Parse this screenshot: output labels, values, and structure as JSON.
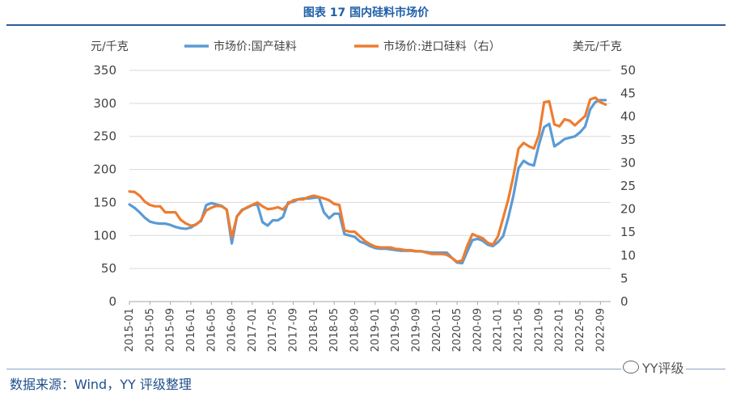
{
  "title": "图表 17 国内硅料市场价",
  "source": "数据来源：Wind，YY 评级整理",
  "watermark": "YY评级",
  "chart_data": {
    "type": "line",
    "left_axis_unit": "元/千克",
    "right_axis_unit": "美元/千克",
    "left_ylim": [
      0,
      350
    ],
    "left_yticks": [
      0,
      50,
      100,
      150,
      200,
      250,
      300,
      350
    ],
    "right_ylim": [
      0,
      50
    ],
    "right_yticks": [
      0,
      5,
      10,
      15,
      20,
      25,
      30,
      35,
      40,
      45,
      50
    ],
    "xlim": [
      "2015-01",
      "2022-11"
    ],
    "x_tick_labels": [
      "2015-01",
      "2015-05",
      "2015-09",
      "2016-01",
      "2016-05",
      "2016-09",
      "2017-01",
      "2017-05",
      "2017-09",
      "2018-01",
      "2018-05",
      "2018-09",
      "2019-01",
      "2019-05",
      "2019-09",
      "2020-01",
      "2020-05",
      "2020-09",
      "2021-01",
      "2021-05",
      "2021-09",
      "2022-01",
      "2022-05",
      "2022-09"
    ],
    "series": [
      {
        "name": "市场价:国产硅料",
        "axis": "left",
        "color": "#5b9bd5",
        "points": [
          [
            "2015-01",
            147
          ],
          [
            "2015-02",
            142
          ],
          [
            "2015-03",
            135
          ],
          [
            "2015-04",
            127
          ],
          [
            "2015-05",
            121
          ],
          [
            "2015-06",
            119
          ],
          [
            "2015-07",
            118
          ],
          [
            "2015-08",
            118
          ],
          [
            "2015-09",
            116
          ],
          [
            "2015-10",
            113
          ],
          [
            "2015-11",
            111
          ],
          [
            "2015-12",
            110
          ],
          [
            "2016-01",
            112
          ],
          [
            "2016-02",
            117
          ],
          [
            "2016-03",
            122
          ],
          [
            "2016-04",
            146
          ],
          [
            "2016-05",
            149
          ],
          [
            "2016-06",
            147
          ],
          [
            "2016-07",
            145
          ],
          [
            "2016-08",
            139
          ],
          [
            "2016-09",
            88
          ],
          [
            "2016-10",
            129
          ],
          [
            "2016-11",
            139
          ],
          [
            "2016-12",
            142
          ],
          [
            "2017-01",
            146
          ],
          [
            "2017-02",
            147
          ],
          [
            "2017-03",
            120
          ],
          [
            "2017-04",
            115
          ],
          [
            "2017-05",
            123
          ],
          [
            "2017-06",
            123
          ],
          [
            "2017-07",
            128
          ],
          [
            "2017-08",
            150
          ],
          [
            "2017-09",
            151
          ],
          [
            "2017-10",
            155
          ],
          [
            "2017-11",
            156
          ],
          [
            "2017-12",
            156
          ],
          [
            "2018-01",
            157
          ],
          [
            "2018-02",
            158
          ],
          [
            "2018-03",
            135
          ],
          [
            "2018-04",
            126
          ],
          [
            "2018-05",
            133
          ],
          [
            "2018-06",
            133
          ],
          [
            "2018-07",
            102
          ],
          [
            "2018-08",
            100
          ],
          [
            "2018-09",
            98
          ],
          [
            "2018-10",
            91
          ],
          [
            "2018-11",
            88
          ],
          [
            "2018-12",
            84
          ],
          [
            "2019-01",
            81
          ],
          [
            "2019-02",
            80
          ],
          [
            "2019-03",
            80
          ],
          [
            "2019-04",
            79
          ],
          [
            "2019-05",
            78
          ],
          [
            "2019-06",
            77
          ],
          [
            "2019-07",
            77
          ],
          [
            "2019-08",
            77
          ],
          [
            "2019-09",
            76
          ],
          [
            "2019-10",
            76
          ],
          [
            "2019-11",
            75
          ],
          [
            "2019-12",
            74
          ],
          [
            "2020-01",
            74
          ],
          [
            "2020-02",
            74
          ],
          [
            "2020-03",
            74
          ],
          [
            "2020-04",
            66
          ],
          [
            "2020-05",
            59
          ],
          [
            "2020-06",
            58
          ],
          [
            "2020-07",
            76
          ],
          [
            "2020-08",
            93
          ],
          [
            "2020-09",
            95
          ],
          [
            "2020-10",
            92
          ],
          [
            "2020-11",
            86
          ],
          [
            "2020-12",
            84
          ],
          [
            "2021-01",
            90
          ],
          [
            "2021-02",
            99
          ],
          [
            "2021-03",
            127
          ],
          [
            "2021-04",
            160
          ],
          [
            "2021-05",
            202
          ],
          [
            "2021-06",
            213
          ],
          [
            "2021-07",
            208
          ],
          [
            "2021-08",
            206
          ],
          [
            "2021-09",
            238
          ],
          [
            "2021-10",
            264
          ],
          [
            "2021-11",
            269
          ],
          [
            "2021-12",
            235
          ],
          [
            "2022-01",
            240
          ],
          [
            "2022-02",
            246
          ],
          [
            "2022-03",
            248
          ],
          [
            "2022-04",
            250
          ],
          [
            "2022-05",
            256
          ],
          [
            "2022-06",
            265
          ],
          [
            "2022-07",
            291
          ],
          [
            "2022-08",
            302
          ],
          [
            "2022-09",
            305
          ],
          [
            "2022-10",
            305
          ]
        ]
      },
      {
        "name": "市场价:进口硅料（右）",
        "axis": "right",
        "color": "#ed7d31",
        "points": [
          [
            "2015-01",
            23.8
          ],
          [
            "2015-02",
            23.7
          ],
          [
            "2015-03",
            22.9
          ],
          [
            "2015-04",
            21.6
          ],
          [
            "2015-05",
            20.9
          ],
          [
            "2015-06",
            20.6
          ],
          [
            "2015-07",
            20.6
          ],
          [
            "2015-08",
            19.3
          ],
          [
            "2015-09",
            19.3
          ],
          [
            "2015-10",
            19.3
          ],
          [
            "2015-11",
            17.7
          ],
          [
            "2015-12",
            16.9
          ],
          [
            "2016-01",
            16.4
          ],
          [
            "2016-02",
            16.6
          ],
          [
            "2016-03",
            17.6
          ],
          [
            "2016-04",
            19.7
          ],
          [
            "2016-05",
            20.3
          ],
          [
            "2016-06",
            20.7
          ],
          [
            "2016-07",
            20.6
          ],
          [
            "2016-08",
            19.9
          ],
          [
            "2016-09",
            13.9
          ],
          [
            "2016-10",
            18.4
          ],
          [
            "2016-11",
            19.7
          ],
          [
            "2016-12",
            20.4
          ],
          [
            "2017-01",
            20.9
          ],
          [
            "2017-02",
            21.4
          ],
          [
            "2017-03",
            20.6
          ],
          [
            "2017-04",
            20.0
          ],
          [
            "2017-05",
            20.1
          ],
          [
            "2017-06",
            20.4
          ],
          [
            "2017-07",
            19.9
          ],
          [
            "2017-08",
            21.1
          ],
          [
            "2017-09",
            21.9
          ],
          [
            "2017-10",
            22.1
          ],
          [
            "2017-11",
            22.1
          ],
          [
            "2017-12",
            22.6
          ],
          [
            "2018-01",
            22.9
          ],
          [
            "2018-02",
            22.6
          ],
          [
            "2018-03",
            22.3
          ],
          [
            "2018-04",
            21.9
          ],
          [
            "2018-05",
            21.1
          ],
          [
            "2018-06",
            20.9
          ],
          [
            "2018-07",
            15.4
          ],
          [
            "2018-08",
            15.1
          ],
          [
            "2018-09",
            15.1
          ],
          [
            "2018-10",
            14.1
          ],
          [
            "2018-11",
            13.1
          ],
          [
            "2018-12",
            12.4
          ],
          [
            "2019-01",
            11.9
          ],
          [
            "2019-02",
            11.7
          ],
          [
            "2019-03",
            11.7
          ],
          [
            "2019-04",
            11.7
          ],
          [
            "2019-05",
            11.4
          ],
          [
            "2019-06",
            11.3
          ],
          [
            "2019-07",
            11.1
          ],
          [
            "2019-08",
            11.1
          ],
          [
            "2019-09",
            10.9
          ],
          [
            "2019-10",
            10.9
          ],
          [
            "2019-11",
            10.6
          ],
          [
            "2019-12",
            10.3
          ],
          [
            "2020-01",
            10.3
          ],
          [
            "2020-02",
            10.3
          ],
          [
            "2020-03",
            10.1
          ],
          [
            "2020-04",
            9.4
          ],
          [
            "2020-05",
            8.6
          ],
          [
            "2020-06",
            8.9
          ],
          [
            "2020-07",
            12.1
          ],
          [
            "2020-08",
            14.6
          ],
          [
            "2020-09",
            14.1
          ],
          [
            "2020-10",
            13.7
          ],
          [
            "2020-11",
            12.7
          ],
          [
            "2020-12",
            12.3
          ],
          [
            "2021-01",
            14.1
          ],
          [
            "2021-02",
            18.1
          ],
          [
            "2021-03",
            22.1
          ],
          [
            "2021-04",
            27.1
          ],
          [
            "2021-05",
            33.1
          ],
          [
            "2021-06",
            34.3
          ],
          [
            "2021-07",
            33.6
          ],
          [
            "2021-08",
            33.1
          ],
          [
            "2021-09",
            36.1
          ],
          [
            "2021-10",
            43.1
          ],
          [
            "2021-11",
            43.3
          ],
          [
            "2021-12",
            38.3
          ],
          [
            "2022-01",
            37.9
          ],
          [
            "2022-02",
            39.4
          ],
          [
            "2022-03",
            39.1
          ],
          [
            "2022-04",
            38.1
          ],
          [
            "2022-05",
            39.1
          ],
          [
            "2022-06",
            40.1
          ],
          [
            "2022-07",
            43.7
          ],
          [
            "2022-08",
            44.1
          ],
          [
            "2022-09",
            43.1
          ],
          [
            "2022-10",
            42.6
          ]
        ]
      }
    ]
  }
}
